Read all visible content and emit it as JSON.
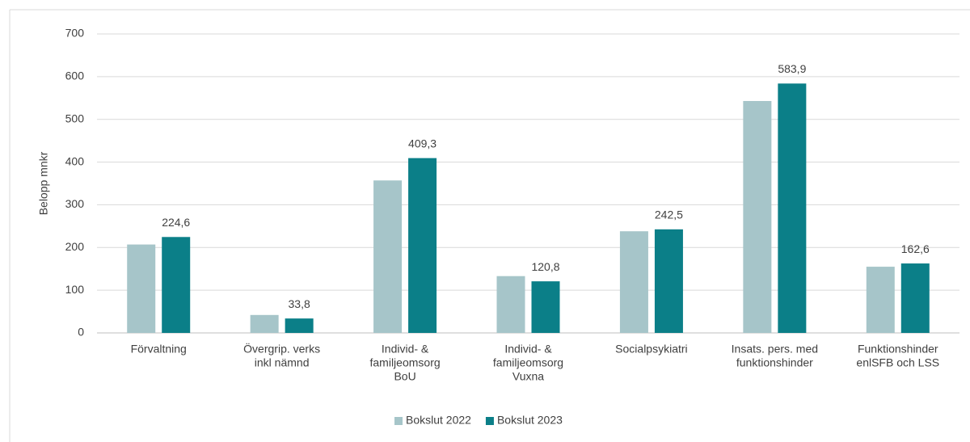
{
  "chart_data": {
    "type": "bar",
    "y_axis_label": "Belopp mnkr",
    "categories": [
      [
        "Förvaltning"
      ],
      [
        "Övergrip. verks",
        "inkl nämnd"
      ],
      [
        "Individ- &",
        "familjeomsorg",
        "BoU"
      ],
      [
        "Individ- &",
        "familjeomsorg",
        "Vuxna"
      ],
      [
        "Socialpsykiatri"
      ],
      [
        "Insats. pers. med",
        "funktionshinder"
      ],
      [
        "Funktionshinder",
        "enlSFB och LSS"
      ]
    ],
    "series": [
      {
        "name": "Bokslut 2022",
        "color": "#a6c5c9",
        "values": [
          207,
          42,
          357,
          133,
          238,
          543,
          155
        ]
      },
      {
        "name": "Bokslut 2023",
        "color": "#0b7f88",
        "values": [
          224.6,
          33.8,
          409.3,
          120.8,
          242.5,
          583.9,
          162.6
        ],
        "value_labels": [
          "224,6",
          "33,8",
          "409,3",
          "120,8",
          "242,5",
          "583,9",
          "162,6"
        ]
      }
    ],
    "ylim": [
      0,
      700
    ],
    "yticks": [
      0,
      100,
      200,
      300,
      400,
      500,
      600,
      700
    ],
    "grid": true,
    "legend": "bottom"
  }
}
